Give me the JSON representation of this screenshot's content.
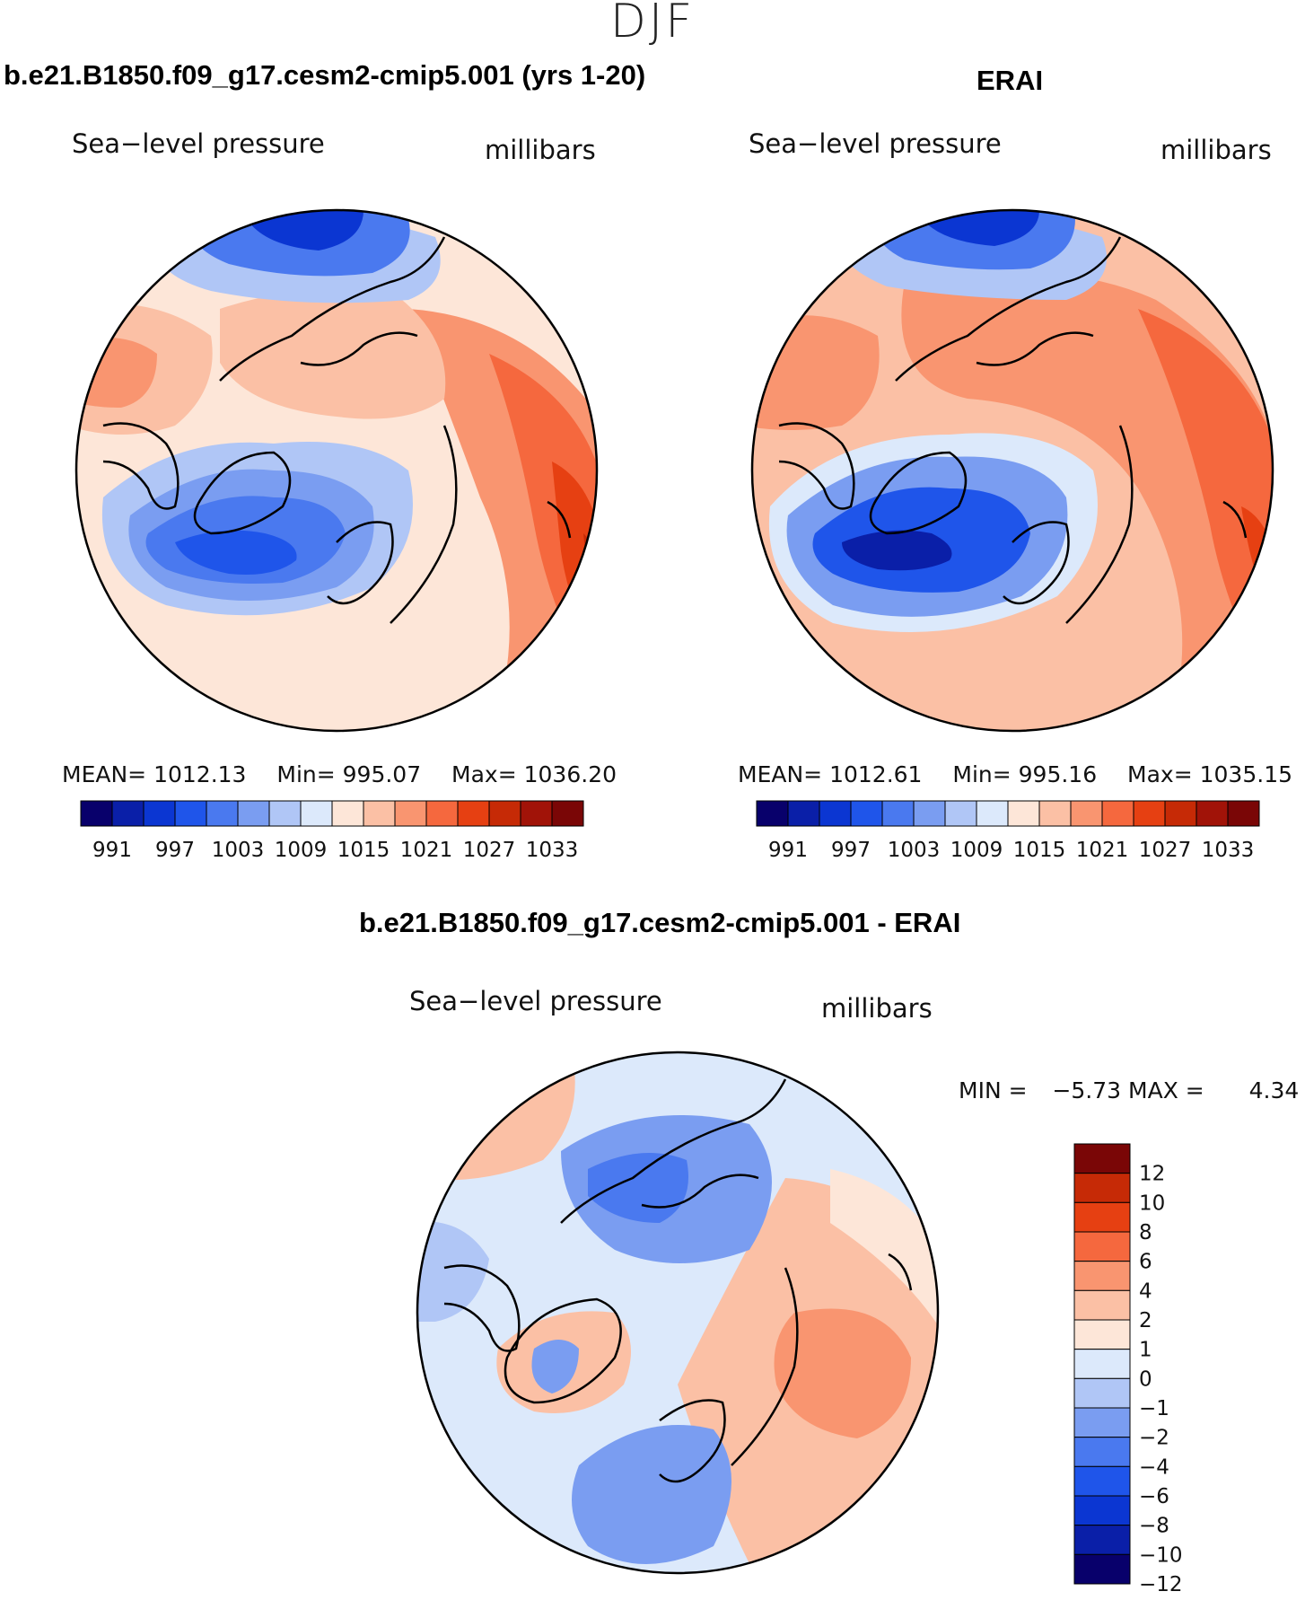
{
  "figure": {
    "season": "DJF",
    "colors": {
      "scale14": [
        "#08006b",
        "#0a1fa8",
        "#0b36d2",
        "#1f55ea",
        "#4a79ef",
        "#7a9df1",
        "#b0c6f6",
        "#dce9fb",
        "#fde6d8",
        "#fbc0a5",
        "#f99570",
        "#f5683e",
        "#e64012",
        "#c62a06",
        "#a11308",
        "#7a0606"
      ],
      "diff": [
        "#08006b",
        "#0a1fa8",
        "#0b36d2",
        "#1f55ea",
        "#4a79ef",
        "#7a9df1",
        "#b0c6f6",
        "#dce9fb",
        "#fde6d8",
        "#fbc0a5",
        "#f99570",
        "#f5683e",
        "#e64012",
        "#c62a06",
        "#7a0606"
      ],
      "land_outline": "#000000"
    }
  },
  "chart_data": [
    {
      "type": "heatmap",
      "projection": "polar-stereographic",
      "panel": "top-left",
      "title": "b.e21.B1850.f09_g17.cesm2-cmip5.001 (yrs 1-20)",
      "variable": "Sea−level pressure",
      "units": "millibars",
      "stats": {
        "mean_label": "MEAN=",
        "mean": "1012.13",
        "min_label": "Min=",
        "min": "995.07",
        "max_label": "Max=",
        "max": "1036.20"
      },
      "colorbar": {
        "orientation": "horizontal",
        "levels": [
          "991",
          "997",
          "1003",
          "1009",
          "1015",
          "1021",
          "1027",
          "1033"
        ]
      }
    },
    {
      "type": "heatmap",
      "projection": "polar-stereographic",
      "panel": "top-right",
      "title": "ERAI",
      "variable": "Sea−level pressure",
      "units": "millibars",
      "stats": {
        "mean_label": "MEAN=",
        "mean": "1012.61",
        "min_label": "Min=",
        "min": "995.16",
        "max_label": "Max=",
        "max": "1035.15"
      },
      "colorbar": {
        "orientation": "horizontal",
        "levels": [
          "991",
          "997",
          "1003",
          "1009",
          "1015",
          "1021",
          "1027",
          "1033"
        ]
      }
    },
    {
      "type": "heatmap",
      "projection": "polar-stereographic",
      "panel": "bottom",
      "title": "b.e21.B1850.f09_g17.cesm2-cmip5.001 - ERAI",
      "variable": "Sea−level pressure",
      "units": "millibars",
      "stats": {
        "min_label": "MIN =",
        "min": "−5.73",
        "max_label": "MAX =",
        "max": "4.34"
      },
      "colorbar": {
        "orientation": "vertical",
        "levels": [
          "12",
          "10",
          "8",
          "6",
          "4",
          "2",
          "1",
          "0",
          "−1",
          "−2",
          "−4",
          "−6",
          "−8",
          "−10",
          "−12"
        ]
      }
    }
  ]
}
